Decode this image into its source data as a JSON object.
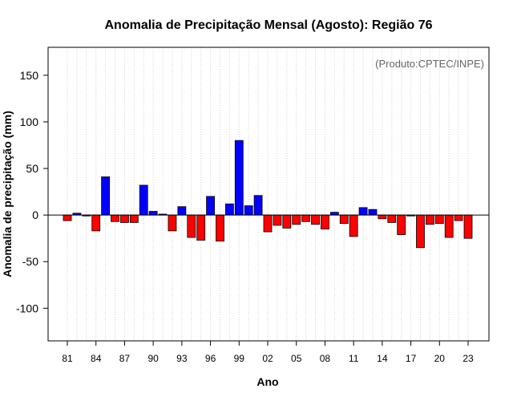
{
  "chart_data": {
    "type": "bar",
    "title": "Anomalia de Precipitação Mensal (Agosto): Região 76",
    "xlabel": "Ano",
    "ylabel": "Anomalia de precipitação (mm)",
    "credit": "(Produto:CPTEC/INPE)",
    "ylim": [
      -135,
      180
    ],
    "yticks": [
      -100,
      -50,
      0,
      50,
      100,
      150
    ],
    "grid": "vertical dotted",
    "positive_color": "#0000ff",
    "negative_color": "#ff0000",
    "categories": [
      "81",
      "82",
      "83",
      "84",
      "85",
      "86",
      "87",
      "88",
      "89",
      "90",
      "91",
      "92",
      "93",
      "94",
      "95",
      "96",
      "97",
      "98",
      "99",
      "00",
      "01",
      "02",
      "03",
      "04",
      "05",
      "06",
      "07",
      "08",
      "09",
      "10",
      "11",
      "12",
      "13",
      "14",
      "15",
      "16",
      "17",
      "18",
      "19",
      "20",
      "21",
      "22",
      "23"
    ],
    "xticks": [
      "81",
      "84",
      "87",
      "90",
      "93",
      "96",
      "99",
      "02",
      "05",
      "08",
      "11",
      "14",
      "17",
      "20",
      "23"
    ],
    "values": [
      -6,
      2,
      -1,
      -17,
      41,
      -7,
      -8,
      -8,
      32,
      4,
      1,
      -17,
      9,
      -24,
      -27,
      20,
      -28,
      12,
      80,
      10,
      21,
      -18,
      -11,
      -14,
      -10,
      -7,
      -10,
      -15,
      3,
      -9,
      -23,
      8,
      6,
      -4,
      -8,
      -21,
      -1,
      -35,
      -10,
      -9,
      -24,
      -6,
      -25
    ]
  }
}
